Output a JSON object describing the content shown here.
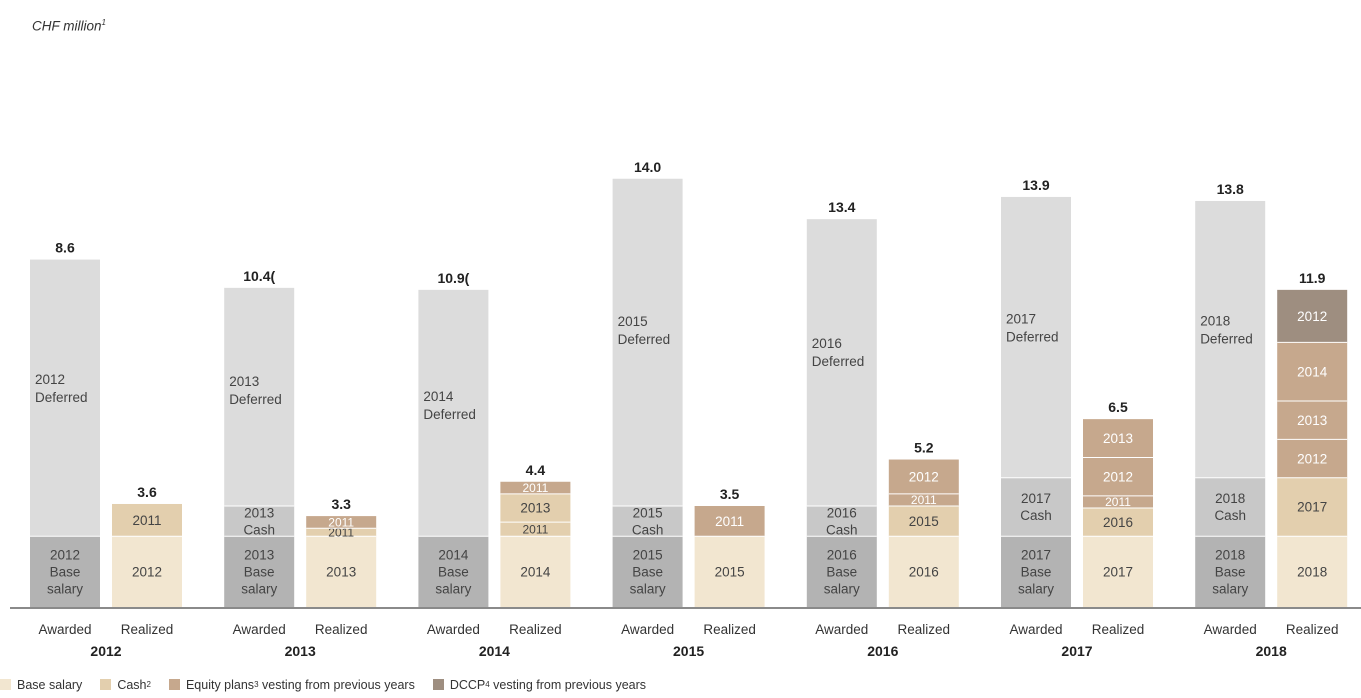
{
  "chart_data": {
    "type": "bar",
    "unit_label": "CHF million",
    "unit_label_sup": "1",
    "ylim": [
      0,
      14.0
    ],
    "colors": {
      "deferred": "#dcdcdc",
      "awarded_cash": "#c8c8c8",
      "awarded_base": "#b3b3b3",
      "base_salary": "#f2e6d0",
      "cash": "#e3cfae",
      "equity": "#c6a88d",
      "dccp": "#9e8e80"
    },
    "legend": [
      {
        "key": "base_salary",
        "label": "Base salary",
        "sup": ""
      },
      {
        "key": "cash",
        "label": "Cash",
        "sup": "2"
      },
      {
        "key": "equity",
        "label": "Equity plans",
        "sup": "3",
        "suffix": " vesting from previous years"
      },
      {
        "key": "dccp",
        "label": "DCCP",
        "sup": "4",
        "suffix": " vesting from previous years"
      }
    ],
    "groups": [
      {
        "year": "2012",
        "awarded": {
          "label": "Awarded",
          "total": "8.6",
          "segments": [
            {
              "value": 1.75,
              "kind": "awarded_base",
              "text": [
                "2012",
                "Base",
                "salary"
              ]
            },
            {
              "value": 6.85,
              "kind": "deferred",
              "text": [
                "2012",
                "Deferred"
              ]
            }
          ]
        },
        "realized": {
          "label": "Realized",
          "total": "3.6",
          "segments": [
            {
              "value": 1.75,
              "kind": "base_salary",
              "text": [
                "2012"
              ]
            },
            {
              "value": 0.8,
              "kind": "cash",
              "text": [
                "2011"
              ]
            }
          ]
        }
      },
      {
        "year": "2013",
        "awarded": {
          "label": "Awarded",
          "total": "10.4(",
          "segments": [
            {
              "value": 1.75,
              "kind": "awarded_base",
              "text": [
                "2013",
                "Base",
                "salary"
              ]
            },
            {
              "value": 0.75,
              "kind": "awarded_cash",
              "text": [
                "2013",
                "Cash"
              ]
            },
            {
              "value": 5.4,
              "kind": "deferred",
              "text": [
                "2013",
                "Deferred"
              ]
            }
          ]
        },
        "realized": {
          "label": "Realized",
          "total": "3.3",
          "segments": [
            {
              "value": 1.75,
              "kind": "base_salary",
              "text": [
                "2013"
              ]
            },
            {
              "value": 0.2,
              "kind": "cash",
              "text": [
                "2011"
              ]
            },
            {
              "value": 0.3,
              "kind": "equity",
              "text": [
                "2011"
              ]
            }
          ]
        }
      },
      {
        "year": "2014",
        "awarded": {
          "label": "Awarded",
          "total": "10.9(",
          "segments": [
            {
              "value": 1.75,
              "kind": "awarded_base",
              "text": [
                "2014",
                "Base",
                "salary"
              ]
            },
            {
              "value": 6.1,
              "kind": "deferred",
              "text": [
                "2014",
                "Deferred"
              ]
            }
          ]
        },
        "realized": {
          "label": "Realized",
          "total": "4.4",
          "segments": [
            {
              "value": 1.75,
              "kind": "base_salary",
              "text": [
                "2014"
              ]
            },
            {
              "value": 0.35,
              "kind": "cash",
              "text": [
                "2011"
              ]
            },
            {
              "value": 0.7,
              "kind": "cash",
              "text": [
                "2013"
              ]
            },
            {
              "value": 0.3,
              "kind": "equity",
              "text": [
                "2011"
              ]
            }
          ]
        }
      },
      {
        "year": "2015",
        "awarded": {
          "label": "Awarded",
          "total": "14.0",
          "segments": [
            {
              "value": 1.75,
              "kind": "awarded_base",
              "text": [
                "2015",
                "Base",
                "salary"
              ]
            },
            {
              "value": 0.75,
              "kind": "awarded_cash",
              "text": [
                "2015",
                "Cash"
              ]
            },
            {
              "value": 8.1,
              "kind": "deferred",
              "text": [
                "2015",
                "Deferred"
              ]
            }
          ]
        },
        "realized": {
          "label": "Realized",
          "total": "3.5",
          "segments": [
            {
              "value": 1.75,
              "kind": "base_salary",
              "text": [
                "2015"
              ]
            },
            {
              "value": 0.75,
              "kind": "equity",
              "text": [
                "2011"
              ]
            }
          ]
        }
      },
      {
        "year": "2016",
        "awarded": {
          "label": "Awarded",
          "total": "13.4",
          "segments": [
            {
              "value": 1.75,
              "kind": "awarded_base",
              "text": [
                "2016",
                "Base",
                "salary"
              ]
            },
            {
              "value": 0.75,
              "kind": "awarded_cash",
              "text": [
                "2016",
                "Cash"
              ]
            },
            {
              "value": 7.1,
              "kind": "deferred",
              "text": [
                "2016",
                "Deferred"
              ]
            }
          ]
        },
        "realized": {
          "label": "Realized",
          "total": "5.2",
          "segments": [
            {
              "value": 1.75,
              "kind": "base_salary",
              "text": [
                "2016"
              ]
            },
            {
              "value": 0.75,
              "kind": "cash",
              "text": [
                "2015"
              ]
            },
            {
              "value": 0.3,
              "kind": "equity",
              "text": [
                "2011"
              ]
            },
            {
              "value": 0.85,
              "kind": "equity",
              "text": [
                "2012"
              ]
            }
          ]
        }
      },
      {
        "year": "2017",
        "awarded": {
          "label": "Awarded",
          "total": "13.9",
          "segments": [
            {
              "value": 1.75,
              "kind": "awarded_base",
              "text": [
                "2017",
                "Base",
                "salary"
              ]
            },
            {
              "value": 1.45,
              "kind": "awarded_cash",
              "text": [
                "2017",
                "Cash"
              ]
            },
            {
              "value": 6.95,
              "kind": "deferred",
              "text": [
                "2017",
                "Deferred"
              ]
            }
          ]
        },
        "realized": {
          "label": "Realized",
          "total": "6.5",
          "segments": [
            {
              "value": 1.75,
              "kind": "base_salary",
              "text": [
                "2017"
              ]
            },
            {
              "value": 0.7,
              "kind": "cash",
              "text": [
                "2016"
              ]
            },
            {
              "value": 0.3,
              "kind": "equity",
              "text": [
                "2011"
              ]
            },
            {
              "value": 0.95,
              "kind": "equity",
              "text": [
                "2012"
              ]
            },
            {
              "value": 0.95,
              "kind": "equity",
              "text": [
                "2013"
              ]
            }
          ]
        }
      },
      {
        "year": "2018",
        "awarded": {
          "label": "Awarded",
          "total": "13.8",
          "segments": [
            {
              "value": 1.75,
              "kind": "awarded_base",
              "text": [
                "2018",
                "Base",
                "salary"
              ]
            },
            {
              "value": 1.45,
              "kind": "awarded_cash",
              "text": [
                "2018",
                "Cash"
              ]
            },
            {
              "value": 6.85,
              "kind": "deferred",
              "text": [
                "2018",
                "Deferred"
              ]
            }
          ]
        },
        "realized": {
          "label": "Realized",
          "total": "11.9",
          "segments": [
            {
              "value": 1.75,
              "kind": "base_salary",
              "text": [
                "2018"
              ]
            },
            {
              "value": 1.45,
              "kind": "cash",
              "text": [
                "2017"
              ]
            },
            {
              "value": 0.95,
              "kind": "equity",
              "text": [
                "2012"
              ]
            },
            {
              "value": 0.95,
              "kind": "equity",
              "text": [
                "2013"
              ]
            },
            {
              "value": 1.45,
              "kind": "equity",
              "text": [
                "2014"
              ]
            },
            {
              "value": 1.3,
              "kind": "dccp",
              "text": [
                "2012"
              ]
            }
          ]
        }
      }
    ]
  }
}
